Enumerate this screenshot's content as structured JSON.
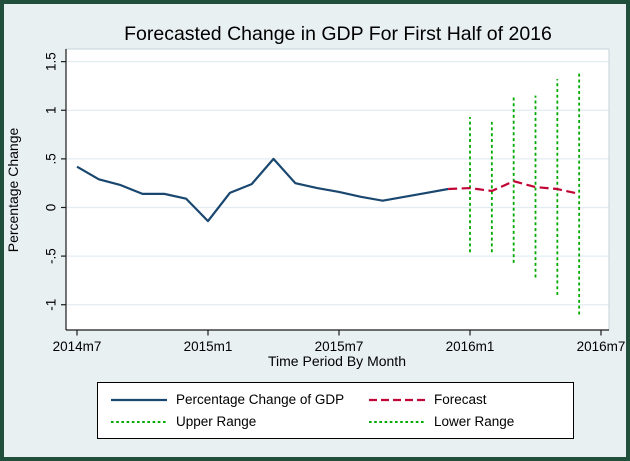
{
  "window": {
    "background_color": "#e9f0f2",
    "frame_color": "#20503c",
    "plot_background": "#ffffff",
    "gridline_color": "#e2ecf3",
    "title_color": "#1a476f"
  },
  "title": "Forecasted Change in GDP For First Half of 2016",
  "chart_data": {
    "type": "line",
    "title": "Forecasted Change in GDP For First Half of 2016",
    "xlabel": "Time Period By Month",
    "ylabel": "Percentage Change",
    "ylim": [
      -1.26,
      1.63
    ],
    "grid": true,
    "legend_position": "bottom",
    "axis_months": [
      "2014m7",
      "2014m8",
      "2014m9",
      "2014m10",
      "2014m11",
      "2014m12",
      "2015m1",
      "2015m2",
      "2015m3",
      "2015m4",
      "2015m5",
      "2015m6",
      "2015m7",
      "2015m8",
      "2015m9",
      "2015m10",
      "2015m11",
      "2015m12",
      "2016m1",
      "2016m2",
      "2016m3",
      "2016m4",
      "2016m5",
      "2016m6",
      "2016m7"
    ],
    "xticks": [
      "2014m7",
      "2015m1",
      "2015m7",
      "2016m1",
      "2016m7"
    ],
    "yticks": [
      {
        "value": 1.5,
        "label": "1.5"
      },
      {
        "value": 1.0,
        "label": "1"
      },
      {
        "value": 0.5,
        "label": ".5"
      },
      {
        "value": 0.0,
        "label": "0"
      },
      {
        "value": -0.5,
        "label": "-.5"
      },
      {
        "value": -1.0,
        "label": "-1"
      }
    ],
    "series": [
      {
        "name": "Percentage Change of GDP",
        "color": "#1a476f",
        "line_style": "solid",
        "x": [
          "2014m7",
          "2014m8",
          "2014m9",
          "2014m10",
          "2014m11",
          "2014m12",
          "2015m1",
          "2015m2",
          "2015m3",
          "2015m4",
          "2015m5",
          "2015m6",
          "2015m7",
          "2015m8",
          "2015m9",
          "2015m10",
          "2015m11",
          "2015m12"
        ],
        "values": [
          0.42,
          0.29,
          0.23,
          0.14,
          0.14,
          0.09,
          -0.14,
          0.15,
          0.24,
          0.5,
          0.25,
          0.2,
          0.16,
          0.11,
          0.07,
          0.11,
          0.15,
          0.19
        ]
      },
      {
        "name": "Forecast",
        "color": "#c10534",
        "line_style": "dashed",
        "x": [
          "2015m12",
          "2016m1",
          "2016m2",
          "2016m3",
          "2016m4",
          "2016m5",
          "2016m6"
        ],
        "values": [
          0.19,
          0.2,
          0.17,
          0.27,
          0.21,
          0.19,
          0.14
        ]
      }
    ],
    "range_lines": {
      "color": "#00aa00",
      "line_style": "dotted",
      "x": [
        "2016m1",
        "2016m2",
        "2016m3",
        "2016m4",
        "2016m5",
        "2016m6"
      ],
      "upper": {
        "name": "Upper Range",
        "values": [
          0.93,
          0.88,
          1.14,
          1.15,
          1.32,
          1.4
        ]
      },
      "lower": {
        "name": "Lower Range",
        "values": [
          -0.46,
          -0.46,
          -0.57,
          -0.72,
          -0.9,
          -1.1
        ]
      }
    }
  },
  "legend": {
    "items": [
      {
        "label": "Percentage Change of GDP",
        "color": "#1a476f",
        "style": "solid"
      },
      {
        "label": "Forecast",
        "color": "#c10534",
        "style": "dashed"
      },
      {
        "label": "Upper Range",
        "color": "#00aa00",
        "style": "dotted"
      },
      {
        "label": "Lower Range",
        "color": "#00aa00",
        "style": "dotted"
      }
    ]
  }
}
